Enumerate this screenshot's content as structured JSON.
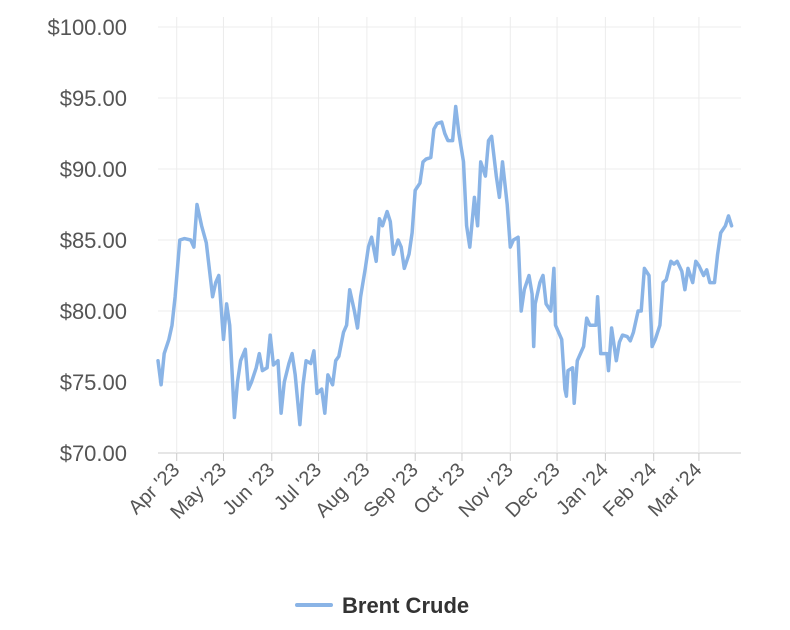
{
  "chart_data": {
    "type": "line",
    "title": "",
    "xlabel": "",
    "ylabel": "",
    "ylim": [
      70,
      100
    ],
    "yticks": [
      "$70.00",
      "$75.00",
      "$80.00",
      "$85.00",
      "$90.00",
      "$95.00",
      "$100.00"
    ],
    "ytick_values": [
      70,
      75,
      80,
      85,
      90,
      95,
      100
    ],
    "xticks": [
      "Apr '23",
      "May '23",
      "Jun '23",
      "Jul '23",
      "Aug '23",
      "Sep '23",
      "Oct '23",
      "Nov '23",
      "Dec '23",
      "Jan '24",
      "Feb '24",
      "Mar '24"
    ],
    "xlim": [
      "2023-03-20",
      "2024-03-28"
    ],
    "grid": true,
    "legend_position": "bottom-center",
    "series": [
      {
        "name": "Brent Crude",
        "color": "#8ab4e6",
        "points": [
          [
            "2023-03-20",
            76.5
          ],
          [
            "2023-03-22",
            74.8
          ],
          [
            "2023-03-24",
            77.0
          ],
          [
            "2023-03-27",
            78.0
          ],
          [
            "2023-03-29",
            79.0
          ],
          [
            "2023-03-31",
            81.0
          ],
          [
            "2023-04-03",
            85.0
          ],
          [
            "2023-04-06",
            85.1
          ],
          [
            "2023-04-10",
            85.0
          ],
          [
            "2023-04-12",
            84.5
          ],
          [
            "2023-04-14",
            87.5
          ],
          [
            "2023-04-17",
            86.0
          ],
          [
            "2023-04-20",
            84.8
          ],
          [
            "2023-04-24",
            81.0
          ],
          [
            "2023-04-26",
            82.0
          ],
          [
            "2023-04-28",
            82.5
          ],
          [
            "2023-05-01",
            78.0
          ],
          [
            "2023-05-03",
            80.5
          ],
          [
            "2023-05-05",
            79.0
          ],
          [
            "2023-05-08",
            72.5
          ],
          [
            "2023-05-10",
            75.0
          ],
          [
            "2023-05-12",
            76.5
          ],
          [
            "2023-05-15",
            77.3
          ],
          [
            "2023-05-17",
            74.5
          ],
          [
            "2023-05-19",
            75.0
          ],
          [
            "2023-05-22",
            76.0
          ],
          [
            "2023-05-24",
            77.0
          ],
          [
            "2023-05-26",
            75.8
          ],
          [
            "2023-05-29",
            76.0
          ],
          [
            "2023-05-31",
            78.3
          ],
          [
            "2023-06-02",
            76.2
          ],
          [
            "2023-06-05",
            76.5
          ],
          [
            "2023-06-07",
            72.8
          ],
          [
            "2023-06-09",
            75.0
          ],
          [
            "2023-06-12",
            76.3
          ],
          [
            "2023-06-14",
            77.0
          ],
          [
            "2023-06-16",
            75.5
          ],
          [
            "2023-06-19",
            72.0
          ],
          [
            "2023-06-21",
            74.8
          ],
          [
            "2023-06-23",
            76.5
          ],
          [
            "2023-06-26",
            76.3
          ],
          [
            "2023-06-28",
            77.2
          ],
          [
            "2023-06-30",
            74.2
          ],
          [
            "2023-07-03",
            74.5
          ],
          [
            "2023-07-05",
            72.8
          ],
          [
            "2023-07-07",
            75.5
          ],
          [
            "2023-07-10",
            74.8
          ],
          [
            "2023-07-12",
            76.5
          ],
          [
            "2023-07-14",
            76.8
          ],
          [
            "2023-07-17",
            78.5
          ],
          [
            "2023-07-19",
            79.0
          ],
          [
            "2023-07-21",
            81.5
          ],
          [
            "2023-07-24",
            80.0
          ],
          [
            "2023-07-26",
            78.8
          ],
          [
            "2023-07-28",
            81.0
          ],
          [
            "2023-07-31",
            83.0
          ],
          [
            "2023-08-02",
            84.5
          ],
          [
            "2023-08-04",
            85.2
          ],
          [
            "2023-08-07",
            83.5
          ],
          [
            "2023-08-09",
            86.5
          ],
          [
            "2023-08-11",
            86.0
          ],
          [
            "2023-08-14",
            87.0
          ],
          [
            "2023-08-16",
            86.3
          ],
          [
            "2023-08-18",
            84.0
          ],
          [
            "2023-08-21",
            85.0
          ],
          [
            "2023-08-23",
            84.5
          ],
          [
            "2023-08-25",
            83.0
          ],
          [
            "2023-08-28",
            84.0
          ],
          [
            "2023-08-30",
            85.5
          ],
          [
            "2023-09-01",
            88.5
          ],
          [
            "2023-09-04",
            89.0
          ],
          [
            "2023-09-06",
            90.5
          ],
          [
            "2023-09-08",
            90.7
          ],
          [
            "2023-09-11",
            90.8
          ],
          [
            "2023-09-13",
            92.8
          ],
          [
            "2023-09-15",
            93.2
          ],
          [
            "2023-09-18",
            93.3
          ],
          [
            "2023-09-20",
            92.5
          ],
          [
            "2023-09-22",
            92.0
          ],
          [
            "2023-09-25",
            92.0
          ],
          [
            "2023-09-27",
            94.4
          ],
          [
            "2023-09-29",
            92.5
          ],
          [
            "2023-10-02",
            90.5
          ],
          [
            "2023-10-04",
            86.0
          ],
          [
            "2023-10-06",
            84.5
          ],
          [
            "2023-10-09",
            88.0
          ],
          [
            "2023-10-11",
            86.0
          ],
          [
            "2023-10-13",
            90.5
          ],
          [
            "2023-10-16",
            89.5
          ],
          [
            "2023-10-18",
            92.0
          ],
          [
            "2023-10-20",
            92.3
          ],
          [
            "2023-10-23",
            89.5
          ],
          [
            "2023-10-25",
            88.0
          ],
          [
            "2023-10-27",
            90.5
          ],
          [
            "2023-10-30",
            87.5
          ],
          [
            "2023-11-01",
            84.5
          ],
          [
            "2023-11-03",
            85.0
          ],
          [
            "2023-11-06",
            85.2
          ],
          [
            "2023-11-08",
            80.0
          ],
          [
            "2023-11-10",
            81.5
          ],
          [
            "2023-11-13",
            82.5
          ],
          [
            "2023-11-15",
            81.2
          ],
          [
            "2023-11-16",
            77.5
          ],
          [
            "2023-11-17",
            80.5
          ],
          [
            "2023-11-20",
            82.0
          ],
          [
            "2023-11-22",
            82.5
          ],
          [
            "2023-11-24",
            80.5
          ],
          [
            "2023-11-27",
            80.0
          ],
          [
            "2023-11-29",
            83.0
          ],
          [
            "2023-11-30",
            79.0
          ],
          [
            "2023-12-04",
            78.0
          ],
          [
            "2023-12-06",
            74.5
          ],
          [
            "2023-12-07",
            74.0
          ],
          [
            "2023-12-08",
            75.8
          ],
          [
            "2023-12-11",
            76.0
          ],
          [
            "2023-12-12",
            73.5
          ],
          [
            "2023-12-14",
            76.5
          ],
          [
            "2023-12-18",
            77.5
          ],
          [
            "2023-12-20",
            79.5
          ],
          [
            "2023-12-22",
            79.0
          ],
          [
            "2023-12-26",
            79.0
          ],
          [
            "2023-12-27",
            81.0
          ],
          [
            "2023-12-29",
            77.0
          ],
          [
            "2024-01-02",
            77.0
          ],
          [
            "2024-01-03",
            75.8
          ],
          [
            "2024-01-05",
            78.8
          ],
          [
            "2024-01-08",
            76.5
          ],
          [
            "2024-01-10",
            77.8
          ],
          [
            "2024-01-12",
            78.3
          ],
          [
            "2024-01-15",
            78.2
          ],
          [
            "2024-01-17",
            77.9
          ],
          [
            "2024-01-19",
            78.5
          ],
          [
            "2024-01-22",
            80.0
          ],
          [
            "2024-01-24",
            80.0
          ],
          [
            "2024-01-26",
            83.0
          ],
          [
            "2024-01-29",
            82.5
          ],
          [
            "2024-01-31",
            77.5
          ],
          [
            "2024-02-02",
            78.0
          ],
          [
            "2024-02-05",
            79.0
          ],
          [
            "2024-02-07",
            82.0
          ],
          [
            "2024-02-09",
            82.2
          ],
          [
            "2024-02-12",
            83.5
          ],
          [
            "2024-02-14",
            83.3
          ],
          [
            "2024-02-16",
            83.5
          ],
          [
            "2024-02-19",
            82.8
          ],
          [
            "2024-02-21",
            81.5
          ],
          [
            "2024-02-23",
            83.0
          ],
          [
            "2024-02-26",
            82.0
          ],
          [
            "2024-02-28",
            83.5
          ],
          [
            "2024-03-01",
            83.2
          ],
          [
            "2024-03-04",
            82.5
          ],
          [
            "2024-03-06",
            82.9
          ],
          [
            "2024-03-08",
            82.0
          ],
          [
            "2024-03-11",
            82.0
          ],
          [
            "2024-03-13",
            84.0
          ],
          [
            "2024-03-15",
            85.5
          ],
          [
            "2024-03-18",
            86.0
          ],
          [
            "2024-03-20",
            86.7
          ],
          [
            "2024-03-22",
            86.0
          ]
        ]
      }
    ]
  }
}
